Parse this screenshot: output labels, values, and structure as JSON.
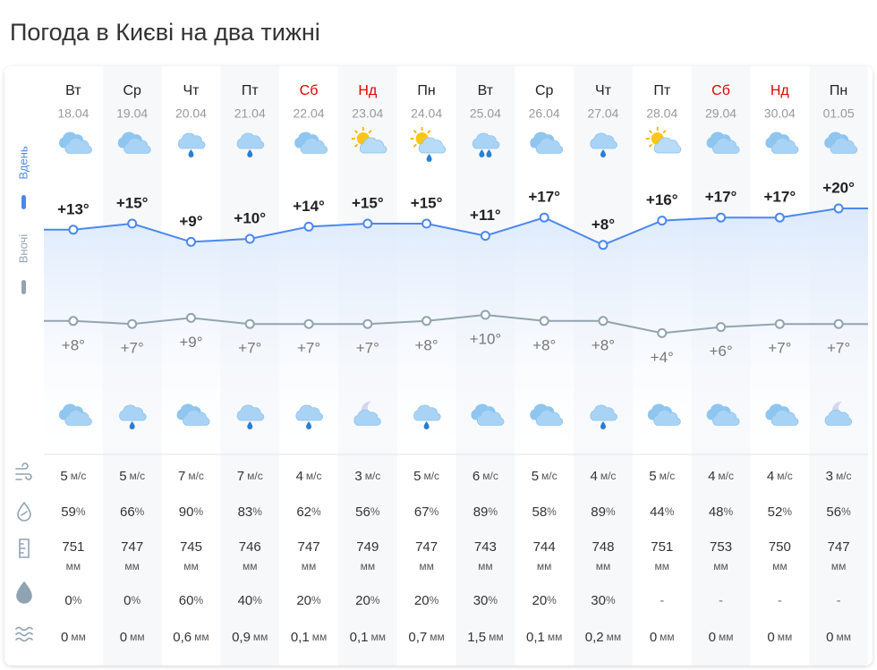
{
  "header": {
    "title": "Погода в Києві на два тижні"
  },
  "side_labels": {
    "day": "Вдень",
    "night": "Вночі"
  },
  "days": [
    {
      "weekday": "Вт",
      "date": "18.04",
      "color": "#222222",
      "day_icon": "cloudy",
      "night_icon": "cloudy"
    },
    {
      "weekday": "Ср",
      "date": "19.04",
      "color": "#222222",
      "day_icon": "cloudy",
      "night_icon": "rain"
    },
    {
      "weekday": "Чт",
      "date": "20.04",
      "color": "#222222",
      "day_icon": "rain",
      "night_icon": "cloudy"
    },
    {
      "weekday": "Пт",
      "date": "21.04",
      "color": "#222222",
      "day_icon": "rain",
      "night_icon": "rain"
    },
    {
      "weekday": "Сб",
      "date": "22.04",
      "color": "#e00000",
      "day_icon": "cloudy",
      "night_icon": "rain"
    },
    {
      "weekday": "Нд",
      "date": "23.04",
      "color": "#e00000",
      "day_icon": "sun-cloud",
      "night_icon": "moon-cloud"
    },
    {
      "weekday": "Пн",
      "date": "24.04",
      "color": "#222222",
      "day_icon": "sun-cloud-rain",
      "night_icon": "rain"
    },
    {
      "weekday": "Вт",
      "date": "25.04",
      "color": "#222222",
      "day_icon": "rain-heavy",
      "night_icon": "cloudy"
    },
    {
      "weekday": "Ср",
      "date": "26.04",
      "color": "#222222",
      "day_icon": "cloudy",
      "night_icon": "cloudy"
    },
    {
      "weekday": "Чт",
      "date": "27.04",
      "color": "#222222",
      "day_icon": "rain",
      "night_icon": "rain"
    },
    {
      "weekday": "Пт",
      "date": "28.04",
      "color": "#222222",
      "day_icon": "sun-cloud",
      "night_icon": "cloudy"
    },
    {
      "weekday": "Сб",
      "date": "29.04",
      "color": "#e00000",
      "day_icon": "cloudy",
      "night_icon": "cloudy"
    },
    {
      "weekday": "Нд",
      "date": "30.04",
      "color": "#e00000",
      "day_icon": "cloudy",
      "night_icon": "cloudy"
    },
    {
      "weekday": "Пн",
      "date": "01.05",
      "color": "#222222",
      "day_icon": "cloudy",
      "night_icon": "moon-cloud"
    }
  ],
  "temperature": {
    "day": {
      "color": "#4a88f0",
      "values": [
        13,
        15,
        9,
        10,
        14,
        15,
        15,
        11,
        17,
        8,
        16,
        17,
        17,
        20
      ],
      "value_labels": [
        "+13°",
        "+15°",
        "+9°",
        "+10°",
        "+14°",
        "+15°",
        "+15°",
        "+11°",
        "+17°",
        "+8°",
        "+16°",
        "+17°",
        "+17°",
        "+20°"
      ]
    },
    "night": {
      "color": "#90a4b0",
      "values": [
        8,
        7,
        9,
        7,
        7,
        7,
        8,
        10,
        8,
        8,
        4,
        6,
        7,
        7
      ],
      "value_labels": [
        "+8°",
        "+7°",
        "+9°",
        "+7°",
        "+7°",
        "+7°",
        "+8°",
        "+10°",
        "+8°",
        "+8°",
        "+4°",
        "+6°",
        "+7°",
        "+7°"
      ]
    }
  },
  "rows": {
    "wind": {
      "unit": "м/с",
      "values": [
        "5",
        "5",
        "7",
        "7",
        "4",
        "3",
        "5",
        "6",
        "5",
        "4",
        "5",
        "4",
        "4",
        "3"
      ]
    },
    "humidity": {
      "unit": "%",
      "values": [
        "59",
        "66",
        "90",
        "83",
        "62",
        "56",
        "67",
        "89",
        "58",
        "89",
        "44",
        "48",
        "52",
        "56"
      ]
    },
    "pressure": {
      "unit": "мм",
      "values": [
        "751",
        "747",
        "745",
        "746",
        "747",
        "749",
        "747",
        "743",
        "744",
        "748",
        "751",
        "753",
        "750",
        "747"
      ]
    },
    "precip_probability": {
      "unit": "%",
      "values": [
        "0",
        "0",
        "60",
        "40",
        "20",
        "20",
        "20",
        "30",
        "20",
        "30",
        "-",
        "-",
        "-",
        "-"
      ]
    },
    "precipitation": {
      "unit": "мм",
      "values": [
        "0",
        "0",
        "0,6",
        "0,9",
        "0,1",
        "0,1",
        "0,7",
        "1,5",
        "0,1",
        "0,2",
        "0",
        "0",
        "0",
        "0"
      ]
    }
  }
}
